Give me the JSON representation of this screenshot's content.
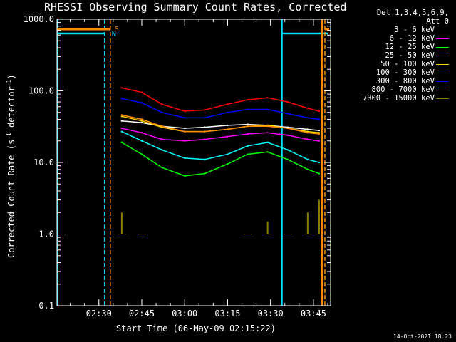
{
  "header": {
    "title": "RHESSI Observing Summary Count Rates, Corrected",
    "xlabel": "Start Time (06-May-09 02:15:22)",
    "ylabel_main": "Corrected Count Rate (s",
    "ylabel_sup1": "-1",
    "ylabel_mid": " detector",
    "ylabel_sup2": "-1",
    "ylabel_end": ")",
    "timestamp": "14-Oct-2021 18:23"
  },
  "legend": {
    "line1": "Det 1,3,4,5,6,9,",
    "line2": "Att 0"
  },
  "colors": {
    "background": "#000000",
    "axes": "#ffffff",
    "saa": "#ff8c00",
    "night": "#00e5ff"
  },
  "chart_data": {
    "type": "line",
    "title": "RHESSI Observing Summary Count Rates, Corrected",
    "xlabel": "Start Time (06-May-09 02:15:22)",
    "ylabel": "Corrected Count Rate (s^-1 detector^-1)",
    "yscale": "log",
    "ylim": [
      0.1,
      1000
    ],
    "xlim": [
      "02:15:22",
      "03:51:00"
    ],
    "ytick_labels": [
      "0.1",
      "1.0",
      "10.0",
      "100.0",
      "1000.0"
    ],
    "xtick_labels": [
      "02:30",
      "02:45",
      "03:00",
      "03:15",
      "03:30",
      "03:45"
    ],
    "x": [
      "02:38",
      "02:45",
      "02:52",
      "03:00",
      "03:07",
      "03:15",
      "03:22",
      "03:29",
      "03:36",
      "03:43",
      "03:47"
    ],
    "series": [
      {
        "name": "3 - 6 keV",
        "color": "#000000",
        "values": [
          38,
          36,
          32,
          30,
          31,
          33,
          34,
          33,
          31,
          29,
          28
        ]
      },
      {
        "name": "6 - 12 keV",
        "color": "#ff00ff",
        "values": [
          30,
          26,
          21,
          20,
          21,
          23,
          25,
          26,
          24,
          21,
          20
        ]
      },
      {
        "name": "12 - 25 keV",
        "color": "#00ff00",
        "values": [
          19,
          13,
          8.5,
          6.5,
          7,
          9.5,
          13,
          14,
          11,
          8,
          7
        ]
      },
      {
        "name": "25 - 50 keV",
        "color": "#00ffff",
        "values": [
          27,
          20,
          15,
          11.5,
          11,
          13,
          17,
          19,
          15,
          11,
          10
        ]
      },
      {
        "name": "50 - 100 keV",
        "color": "#ffd700",
        "values": [
          44,
          38,
          31,
          27,
          27,
          29,
          32,
          33,
          30,
          27,
          26
        ]
      },
      {
        "name": "100 - 300 keV",
        "color": "#ff0000",
        "values": [
          110,
          95,
          65,
          52,
          54,
          65,
          75,
          80,
          70,
          57,
          52
        ]
      },
      {
        "name": "300 - 800 keV",
        "color": "#0000ff",
        "values": [
          78,
          68,
          50,
          42,
          42,
          50,
          55,
          55,
          48,
          42,
          40
        ]
      },
      {
        "name": "800 - 7000 keV",
        "color": "#ff8c00",
        "values": [
          46,
          40,
          32,
          27,
          27,
          29,
          32,
          32,
          30,
          26,
          25
        ]
      },
      {
        "name": "7000 - 15000 keV",
        "color": "#8b7d00",
        "values": [
          2.0,
          1.0,
          null,
          null,
          null,
          null,
          1.0,
          1.5,
          1.0,
          2.0,
          3.0
        ]
      }
    ],
    "annotations": [
      {
        "text": "S",
        "color": "#ff8c00",
        "meaning": "SAA flag"
      },
      {
        "text": "N",
        "color": "#00e5ff",
        "meaning": "Night flag"
      }
    ]
  }
}
